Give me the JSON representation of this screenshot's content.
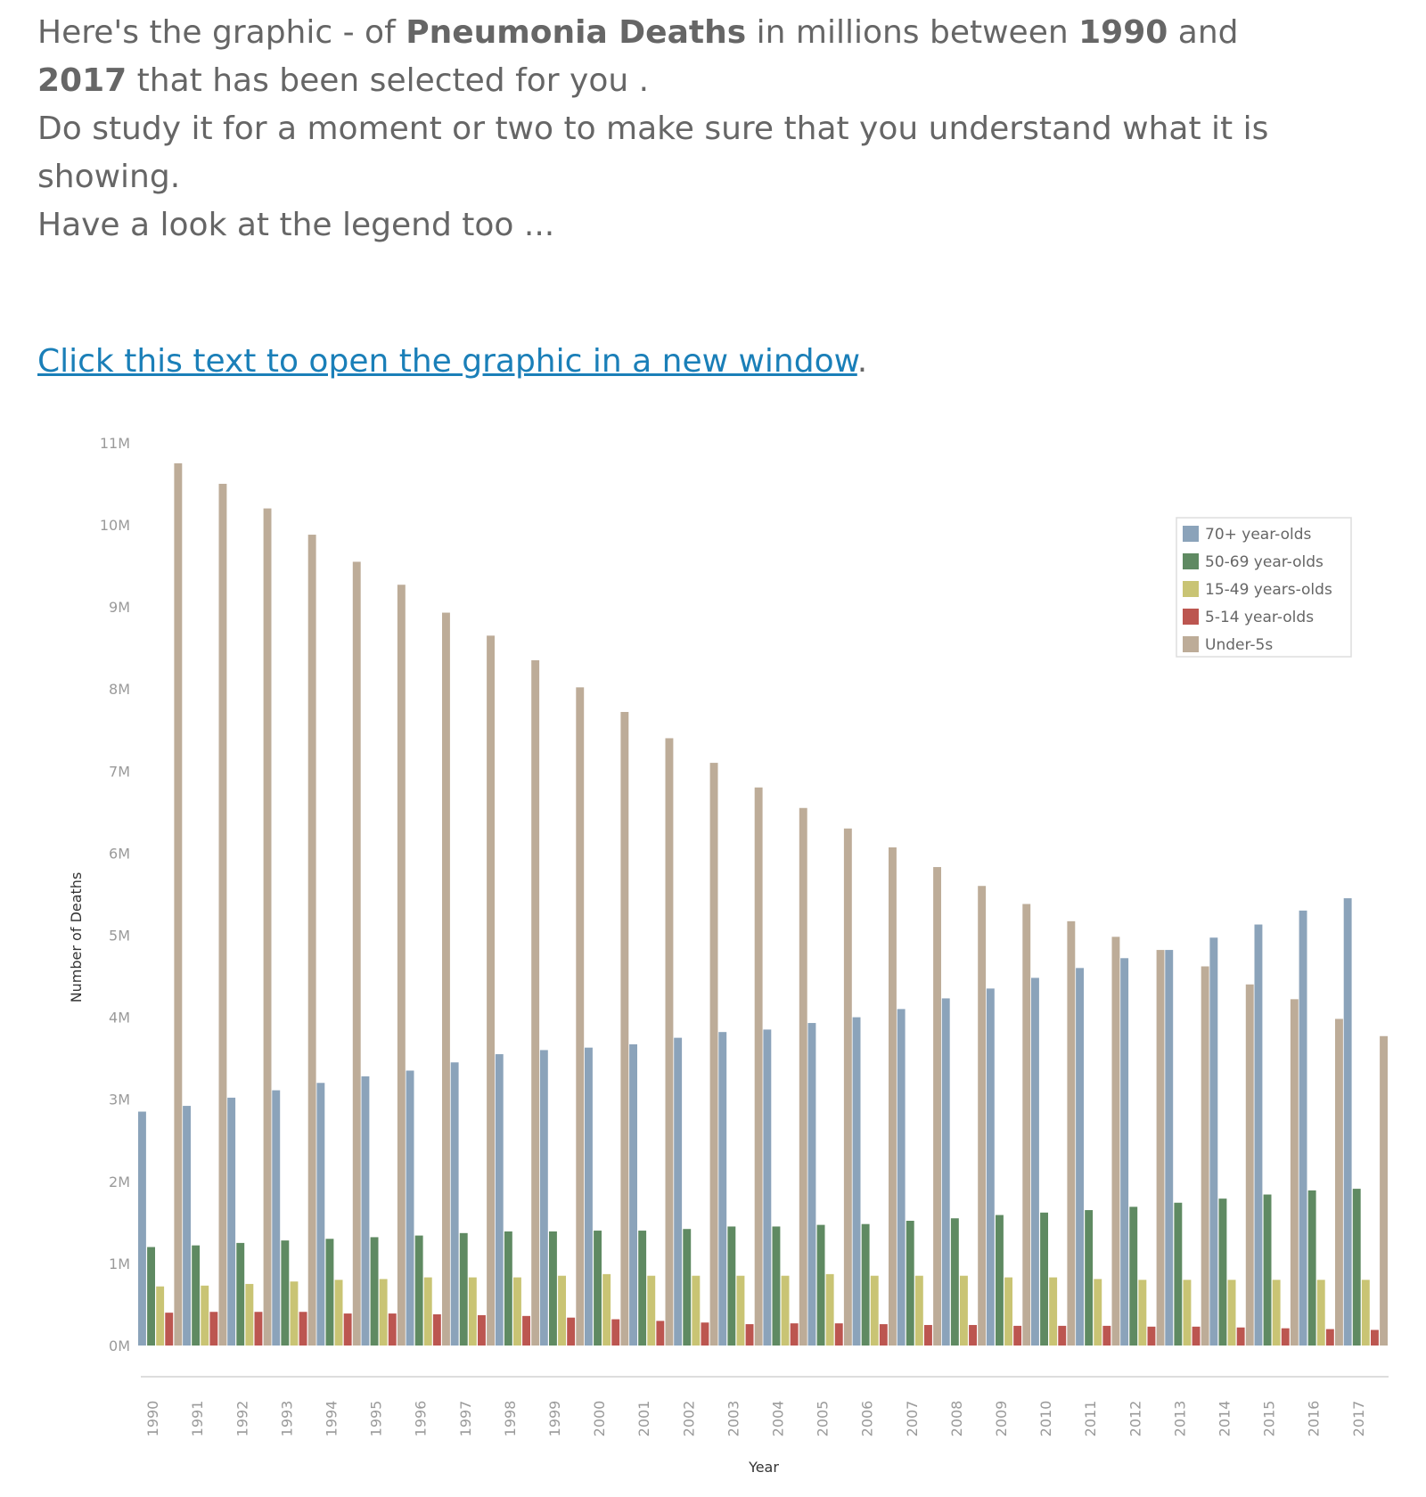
{
  "intro": {
    "line1_a": "Here's the graphic - of ",
    "line1_b": "Pneumonia Deaths",
    "line1_c": " in millions between ",
    "line1_d": "1990",
    "line1_e": " and",
    "line2_a": "2017",
    "line2_b": " that has been selected for you .",
    "line3": "Do study it for a moment or two to make sure that you understand what it is showing.",
    "line4": "Have a look at the legend too ..."
  },
  "link": {
    "text": "Click this text to open the graphic in a new window",
    "after": "."
  },
  "colors": {
    "70+ year-olds": "#8ba3ba",
    "50-69 year-olds": "#5f8a62",
    "15-49 years-olds": "#c9c474",
    "5-14 year-olds": "#bc5650",
    "Under-5s": "#bdac98"
  },
  "chart_data": {
    "type": "bar",
    "xlabel": "Year",
    "ylabel": "Number of Deaths",
    "ylim": [
      0,
      11
    ],
    "yticks": [
      "0M",
      "1M",
      "2M",
      "3M",
      "4M",
      "5M",
      "6M",
      "7M",
      "8M",
      "9M",
      "10M",
      "11M"
    ],
    "grid": false,
    "legend_position": "top-right",
    "categories": [
      "1990",
      "1991",
      "1992",
      "1993",
      "1994",
      "1995",
      "1996",
      "1997",
      "1998",
      "1999",
      "2000",
      "2001",
      "2002",
      "2003",
      "2004",
      "2005",
      "2006",
      "2007",
      "2008",
      "2009",
      "2010",
      "2011",
      "2012",
      "2013",
      "2014",
      "2015",
      "2016",
      "2017"
    ],
    "series": [
      {
        "name": "70+ year-olds",
        "values": [
          2.85,
          2.92,
          3.02,
          3.11,
          3.2,
          3.28,
          3.35,
          3.45,
          3.55,
          3.6,
          3.63,
          3.67,
          3.75,
          3.82,
          3.85,
          3.93,
          4.0,
          4.1,
          4.23,
          4.35,
          4.48,
          4.6,
          4.72,
          4.82,
          4.97,
          5.13,
          5.3,
          5.45
        ]
      },
      {
        "name": "50-69 year-olds",
        "values": [
          1.2,
          1.22,
          1.25,
          1.28,
          1.3,
          1.32,
          1.34,
          1.37,
          1.39,
          1.39,
          1.4,
          1.4,
          1.42,
          1.45,
          1.45,
          1.47,
          1.48,
          1.52,
          1.55,
          1.59,
          1.62,
          1.65,
          1.69,
          1.74,
          1.79,
          1.84,
          1.89,
          1.91
        ]
      },
      {
        "name": "15-49 years-olds",
        "values": [
          0.72,
          0.73,
          0.75,
          0.78,
          0.8,
          0.81,
          0.83,
          0.83,
          0.83,
          0.85,
          0.87,
          0.85,
          0.85,
          0.85,
          0.85,
          0.87,
          0.85,
          0.85,
          0.85,
          0.83,
          0.83,
          0.81,
          0.8,
          0.8,
          0.8,
          0.8,
          0.8,
          0.8
        ]
      },
      {
        "name": "5-14 year-olds",
        "values": [
          0.4,
          0.41,
          0.41,
          0.41,
          0.39,
          0.39,
          0.38,
          0.37,
          0.36,
          0.34,
          0.32,
          0.3,
          0.28,
          0.26,
          0.27,
          0.27,
          0.26,
          0.25,
          0.25,
          0.24,
          0.24,
          0.24,
          0.23,
          0.23,
          0.22,
          0.21,
          0.2,
          0.19
        ]
      },
      {
        "name": "Under-5s",
        "values": [
          10.75,
          10.5,
          10.2,
          9.88,
          9.55,
          9.27,
          8.93,
          8.65,
          8.35,
          8.02,
          7.72,
          7.4,
          7.1,
          6.8,
          6.55,
          6.3,
          6.07,
          5.83,
          5.6,
          5.38,
          5.17,
          4.98,
          4.82,
          4.62,
          4.4,
          4.22,
          3.98,
          3.77
        ]
      }
    ]
  }
}
